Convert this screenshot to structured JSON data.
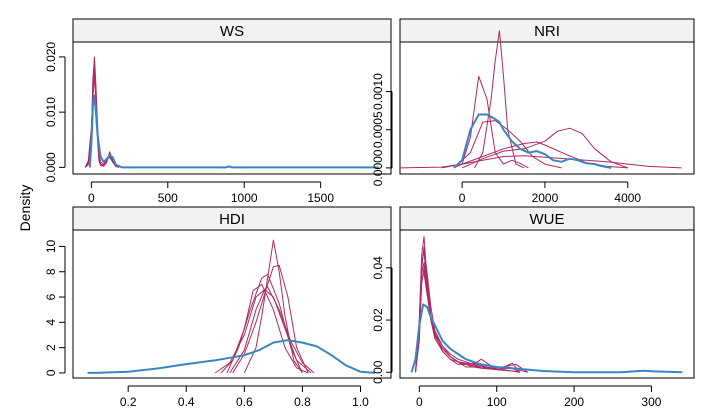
{
  "ylabel": "Density",
  "colors": {
    "observed": "#3a86c4",
    "simulated": "#b0285f",
    "strip": "#f2f2f2"
  },
  "chart_data": [
    {
      "type": "line",
      "title": "WS",
      "xlim": [
        -120,
        1960
      ],
      "ylim": [
        -0.0012,
        0.0227
      ],
      "xticks": [
        0,
        500,
        1000,
        1500
      ],
      "xtick_labels": [
        "0",
        "500",
        "1000",
        "1500"
      ],
      "yticks": [
        0,
        0.01,
        0.02
      ],
      "ytick_labels": [
        "0.000",
        "0.010",
        "0.020"
      ],
      "series": [
        {
          "kind": "observed",
          "x": [
            -10,
            0,
            10,
            20,
            30,
            40,
            60,
            80,
            100,
            120,
            140,
            160,
            200,
            400,
            800,
            880,
            900,
            920,
            1000,
            1500,
            1880
          ],
          "y": [
            0,
            0.004,
            0.011,
            0.013,
            0.01,
            0.006,
            0.002,
            0.001,
            0.0015,
            0.0022,
            0.0018,
            0.0005,
            0,
            0,
            0,
            0,
            0.0002,
            0,
            0,
            0,
            0
          ]
        },
        {
          "kind": "simulated",
          "x": [
            -40,
            -20,
            0,
            10,
            20,
            30,
            40,
            50,
            60,
            80,
            100,
            120,
            140,
            160,
            180
          ],
          "y": [
            0,
            0.0005,
            0.004,
            0.012,
            0.02,
            0.015,
            0.007,
            0.002,
            0.0005,
            0.0003,
            0.001,
            0.0025,
            0.0015,
            0.0003,
            0
          ]
        },
        {
          "kind": "simulated",
          "x": [
            -40,
            -20,
            0,
            10,
            20,
            30,
            40,
            50,
            60,
            80,
            100,
            120,
            140,
            160,
            180
          ],
          "y": [
            0,
            0.001,
            0.006,
            0.014,
            0.018,
            0.013,
            0.006,
            0.0015,
            0.0005,
            0.0004,
            0.0012,
            0.002,
            0.001,
            0.0002,
            0
          ]
        },
        {
          "kind": "simulated",
          "x": [
            -40,
            -20,
            0,
            10,
            20,
            30,
            40,
            50,
            60,
            80,
            100,
            120,
            140,
            160,
            180
          ],
          "y": [
            0,
            0.0008,
            0.005,
            0.016,
            0.0195,
            0.011,
            0.005,
            0.0012,
            0.0004,
            0.0002,
            0.0009,
            0.0028,
            0.0012,
            0.0003,
            0
          ]
        },
        {
          "kind": "simulated",
          "x": [
            -40,
            -20,
            0,
            10,
            20,
            30,
            40,
            50,
            60,
            80,
            100,
            120,
            140,
            160,
            180
          ],
          "y": [
            0,
            0.0012,
            0.007,
            0.013,
            0.016,
            0.014,
            0.008,
            0.003,
            0.001,
            0.0005,
            0.0015,
            0.0018,
            0.0009,
            0.0002,
            0
          ]
        },
        {
          "kind": "simulated",
          "x": [
            -40,
            -20,
            0,
            10,
            20,
            30,
            40,
            50,
            60,
            80,
            100,
            120,
            140,
            160,
            180
          ],
          "y": [
            0,
            0.0006,
            0.004,
            0.015,
            0.0175,
            0.012,
            0.0055,
            0.0018,
            0.0006,
            0.0003,
            0.0011,
            0.0022,
            0.0014,
            0.0004,
            0
          ]
        }
      ]
    },
    {
      "type": "line",
      "title": "NRI",
      "xlim": [
        -1500,
        5600
      ],
      "ylim": [
        -8e-05,
        0.00165
      ],
      "xticks": [
        0,
        2000,
        4000
      ],
      "xtick_labels": [
        "0",
        "2000",
        "4000"
      ],
      "yticks": [
        0,
        0.0005,
        0.001
      ],
      "ytick_labels": [
        "0.0000",
        "0.0005",
        "0.0010"
      ],
      "series": [
        {
          "kind": "observed",
          "x": [
            -200,
            0,
            200,
            400,
            600,
            800,
            900,
            1000,
            1200,
            1400,
            1600,
            1800,
            2000,
            2200,
            2400,
            2600,
            2800,
            3000,
            3200,
            3400,
            3600
          ],
          "y": [
            0,
            0.0001,
            0.0005,
            0.0007,
            0.0007,
            0.00064,
            0.0006,
            0.0005,
            0.00035,
            0.00025,
            0.0002,
            0.00022,
            0.00018,
            0.0001,
            8e-05,
            0.00012,
            0.0001,
            6e-05,
            5e-05,
            2e-05,
            0
          ]
        },
        {
          "kind": "simulated",
          "x": [
            -200,
            0,
            200,
            400,
            600,
            800,
            1000,
            1200,
            1400,
            1600
          ],
          "y": [
            0,
            5e-05,
            0.0004,
            0.0012,
            0.0009,
            0.0002,
            5e-05,
            0.0001,
            6e-05,
            0
          ]
        },
        {
          "kind": "simulated",
          "x": [
            300,
            500,
            700,
            800,
            900,
            1000,
            1100,
            1300,
            1500
          ],
          "y": [
            0,
            0.0002,
            0.0009,
            0.0014,
            0.0018,
            0.0012,
            0.0005,
            5e-05,
            0
          ]
        },
        {
          "kind": "simulated",
          "x": [
            -1500,
            -500,
            0,
            500,
            1000,
            1500,
            2000,
            2500,
            3000,
            3500,
            4000,
            4500,
            5300
          ],
          "y": [
            0,
            1e-05,
            5e-05,
            0.0001,
            0.00015,
            0.00016,
            0.00014,
            0.00012,
            0.0001,
            8e-05,
            5e-05,
            2e-05,
            0
          ]
        },
        {
          "kind": "simulated",
          "x": [
            -500,
            0,
            500,
            1000,
            1500,
            1800,
            2000,
            2500,
            3000,
            3500,
            4000
          ],
          "y": [
            0,
            5e-05,
            0.00015,
            0.00025,
            0.00032,
            0.00034,
            0.0003,
            0.00018,
            7e-05,
            2e-05,
            0
          ]
        },
        {
          "kind": "simulated",
          "x": [
            0,
            500,
            1000,
            1500,
            2000,
            2300,
            2600,
            2900,
            3200,
            3600,
            4000
          ],
          "y": [
            0,
            0.00012,
            0.00022,
            0.00025,
            0.00035,
            0.00048,
            0.00052,
            0.00045,
            0.00025,
            8e-05,
            0
          ]
        },
        {
          "kind": "simulated",
          "x": [
            -200,
            200,
            500,
            800,
            1100,
            1400,
            1700,
            2000,
            2400
          ],
          "y": [
            0,
            0.0002,
            0.0006,
            0.00062,
            0.0005,
            0.00035,
            0.00015,
            5e-05,
            0
          ]
        }
      ]
    },
    {
      "type": "line",
      "title": "HDI",
      "xlim": [
        0.01,
        1.105
      ],
      "ylim": [
        -0.4,
        11.3
      ],
      "xticks": [
        0.2,
        0.4,
        0.6,
        0.8,
        1.0
      ],
      "xtick_labels": [
        "0.2",
        "0.4",
        "0.6",
        "0.8",
        "1.0"
      ],
      "yticks": [
        0,
        2,
        4,
        6,
        8,
        10
      ],
      "ytick_labels": [
        "0",
        "2",
        "4",
        "6",
        "8",
        "10"
      ],
      "series": [
        {
          "kind": "observed",
          "x": [
            0.06,
            0.1,
            0.2,
            0.3,
            0.4,
            0.5,
            0.55,
            0.6,
            0.65,
            0.7,
            0.75,
            0.8,
            0.85,
            0.9,
            0.95,
            1.0,
            1.05
          ],
          "y": [
            0,
            0.01,
            0.1,
            0.35,
            0.7,
            1.0,
            1.2,
            1.4,
            1.8,
            2.4,
            2.6,
            2.4,
            2.1,
            1.4,
            0.6,
            0.1,
            0
          ]
        },
        {
          "kind": "simulated",
          "x": [
            0.6,
            0.64,
            0.66,
            0.68,
            0.7,
            0.72,
            0.74,
            0.77,
            0.8
          ],
          "y": [
            0,
            2,
            4.5,
            7.5,
            10.5,
            8,
            4.5,
            1,
            0
          ]
        },
        {
          "kind": "simulated",
          "x": [
            0.52,
            0.56,
            0.6,
            0.63,
            0.66,
            0.7,
            0.74,
            0.78,
            0.82
          ],
          "y": [
            0,
            1,
            3.5,
            6.5,
            7,
            5,
            2,
            0.4,
            0
          ]
        },
        {
          "kind": "simulated",
          "x": [
            0.54,
            0.58,
            0.62,
            0.66,
            0.68,
            0.72,
            0.76,
            0.8
          ],
          "y": [
            0,
            2,
            5,
            7.5,
            7.8,
            5.5,
            2,
            0
          ]
        },
        {
          "kind": "simulated",
          "x": [
            0.5,
            0.55,
            0.6,
            0.64,
            0.68,
            0.72,
            0.76,
            0.8,
            0.84
          ],
          "y": [
            0,
            0.8,
            3,
            6,
            6.8,
            5,
            2.5,
            0.8,
            0
          ]
        },
        {
          "kind": "simulated",
          "x": [
            0.56,
            0.6,
            0.64,
            0.68,
            0.7,
            0.72,
            0.75,
            0.78,
            0.82
          ],
          "y": [
            0,
            1.5,
            4,
            7,
            8.4,
            8.5,
            6,
            2,
            0
          ]
        },
        {
          "kind": "simulated",
          "x": [
            0.55,
            0.6,
            0.64,
            0.67,
            0.7,
            0.74,
            0.78,
            0.83
          ],
          "y": [
            0,
            1.8,
            5,
            6.6,
            6,
            3.5,
            1,
            0
          ]
        }
      ]
    },
    {
      "type": "line",
      "title": "WUE",
      "xlim": [
        -25,
        355
      ],
      "ylim": [
        -0.0022,
        0.0545
      ],
      "xticks": [
        0,
        100,
        200,
        300
      ],
      "xtick_labels": [
        "0",
        "100",
        "200",
        "300"
      ],
      "yticks": [
        0,
        0.02,
        0.04
      ],
      "ytick_labels": [
        "0.00",
        "0.02",
        "0.04"
      ],
      "series": [
        {
          "kind": "observed",
          "x": [
            -10,
            -5,
            0,
            5,
            10,
            15,
            20,
            30,
            40,
            50,
            60,
            70,
            80,
            100,
            120,
            140,
            160,
            200,
            260,
            290,
            300,
            340
          ],
          "y": [
            0,
            0.005,
            0.018,
            0.026,
            0.025,
            0.021,
            0.018,
            0.012,
            0.009,
            0.007,
            0.005,
            0.004,
            0.003,
            0.002,
            0.0015,
            0.001,
            0.0005,
            0,
            0,
            0.0006,
            0.0004,
            0
          ]
        },
        {
          "kind": "simulated",
          "x": [
            -5,
            0,
            3,
            6,
            10,
            15,
            20,
            30,
            40,
            50,
            60,
            70,
            80,
            100,
            120,
            130
          ],
          "y": [
            0,
            0.02,
            0.045,
            0.052,
            0.035,
            0.022,
            0.015,
            0.008,
            0.005,
            0.003,
            0.003,
            0.002,
            0.002,
            0.001,
            0.0005,
            0
          ]
        },
        {
          "kind": "simulated",
          "x": [
            -5,
            0,
            3,
            6,
            10,
            15,
            20,
            30,
            40,
            50,
            60,
            70,
            80,
            100,
            115,
            125,
            140
          ],
          "y": [
            0,
            0.015,
            0.04,
            0.048,
            0.038,
            0.025,
            0.016,
            0.01,
            0.006,
            0.004,
            0.003,
            0.0025,
            0.002,
            0.0015,
            0.0025,
            0.003,
            0
          ]
        },
        {
          "kind": "simulated",
          "x": [
            -5,
            0,
            3,
            6,
            10,
            15,
            20,
            30,
            40,
            50,
            60,
            70,
            80,
            100,
            120,
            130
          ],
          "y": [
            0,
            0.018,
            0.038,
            0.042,
            0.032,
            0.02,
            0.014,
            0.009,
            0.006,
            0.004,
            0.003,
            0.0035,
            0.0025,
            0.001,
            0.0005,
            0
          ]
        },
        {
          "kind": "simulated",
          "x": [
            -5,
            0,
            3,
            6,
            10,
            15,
            20,
            30,
            40,
            50,
            60,
            70,
            80,
            90,
            100,
            115,
            140
          ],
          "y": [
            0,
            0.012,
            0.034,
            0.04,
            0.03,
            0.02,
            0.015,
            0.01,
            0.007,
            0.005,
            0.004,
            0.003,
            0.005,
            0.003,
            0.001,
            0.002,
            0
          ]
        },
        {
          "kind": "simulated",
          "x": [
            -5,
            0,
            3,
            6,
            10,
            15,
            20,
            30,
            40,
            50,
            60,
            70,
            80,
            100,
            120,
            130
          ],
          "y": [
            0,
            0.02,
            0.042,
            0.046,
            0.034,
            0.02,
            0.013,
            0.008,
            0.005,
            0.004,
            0.002,
            0.002,
            0.0015,
            0.001,
            0.0015,
            0
          ]
        },
        {
          "kind": "simulated",
          "x": [
            -5,
            0,
            3,
            6,
            10,
            15,
            20,
            30,
            40,
            50,
            60,
            70,
            80,
            100,
            110,
            120,
            130
          ],
          "y": [
            0,
            0.016,
            0.036,
            0.038,
            0.03,
            0.021,
            0.014,
            0.009,
            0.006,
            0.004,
            0.0035,
            0.003,
            0.002,
            0.0015,
            0.002,
            0.0035,
            0
          ]
        }
      ]
    }
  ]
}
